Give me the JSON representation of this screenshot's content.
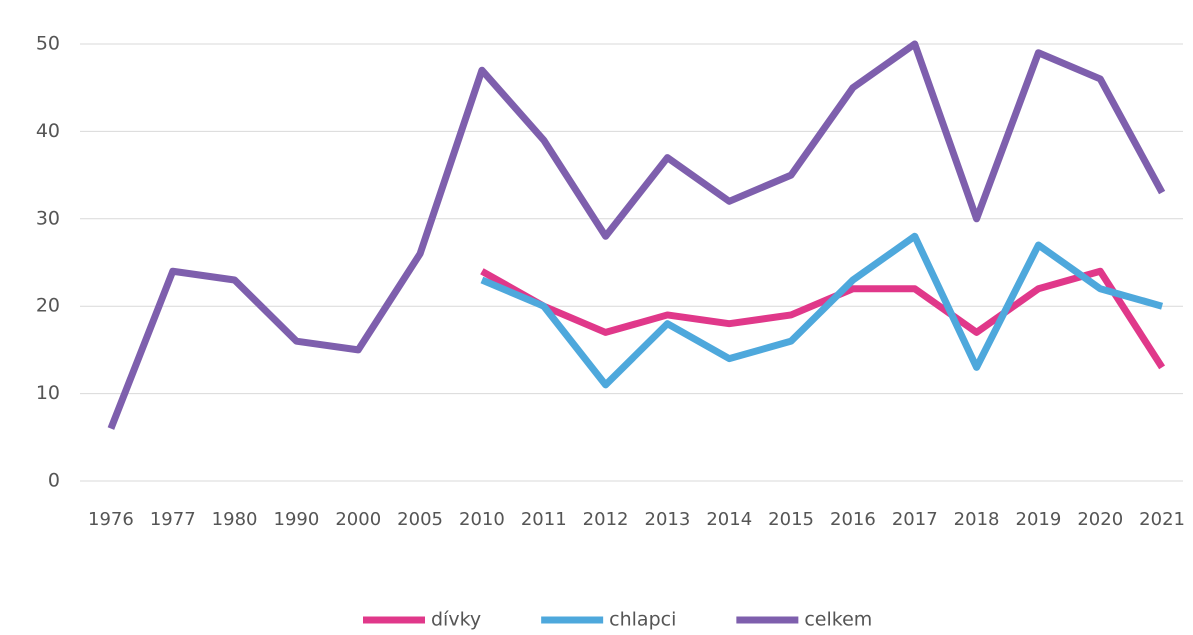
{
  "chart_data": {
    "type": "line",
    "categories": [
      "1976",
      "1977",
      "1980",
      "1990",
      "2000",
      "2005",
      "2010",
      "2011",
      "2012",
      "2013",
      "2014",
      "2015",
      "2016",
      "2017",
      "2018",
      "2019",
      "2020",
      "2021"
    ],
    "series": [
      {
        "name": "dívky",
        "color": "#e0388a",
        "values": [
          null,
          null,
          null,
          null,
          null,
          null,
          24,
          20,
          17,
          19,
          18,
          19,
          22,
          22,
          17,
          22,
          24,
          13
        ]
      },
      {
        "name": "chlapci",
        "color": "#4ea8dc",
        "values": [
          null,
          null,
          null,
          null,
          null,
          null,
          23,
          20,
          11,
          18,
          14,
          16,
          23,
          28,
          13,
          27,
          22,
          20
        ]
      },
      {
        "name": "celkem",
        "color": "#7e5fad",
        "values": [
          6,
          24,
          23,
          16,
          15,
          26,
          47,
          39,
          28,
          37,
          32,
          35,
          45,
          50,
          30,
          49,
          46,
          33
        ]
      }
    ],
    "ylim": [
      0,
      50
    ],
    "yticks": [
      0,
      10,
      20,
      30,
      40,
      50
    ],
    "grid": true,
    "legend": "bottom"
  }
}
